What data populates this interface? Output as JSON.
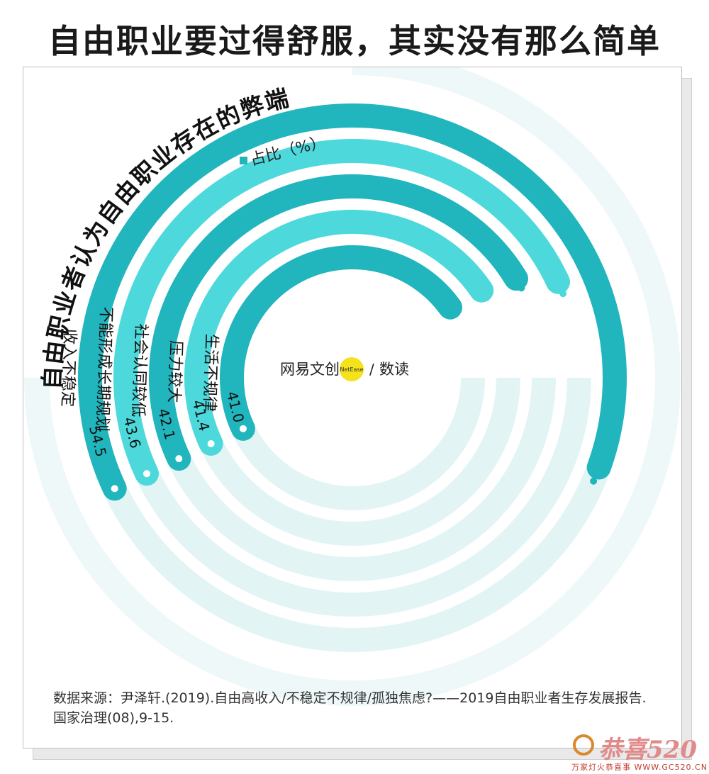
{
  "title": "自由职业要过得舒服，其实没有那么简单",
  "chart_data": {
    "type": "radial-bar",
    "title": "自由职业者认为自由职业存在的弊端",
    "legend": "占比（%）",
    "unit": "%",
    "categories": [
      "收入不稳定",
      "不能形成长期规划",
      "社会认同较低",
      "压力较大",
      "生活不规律"
    ],
    "values": [
      54.5,
      43.6,
      42.1,
      41.4,
      41.0
    ],
    "value_labels": [
      "54.5",
      "43.6",
      "42.1",
      "41.4",
      "41.0"
    ],
    "colors": [
      "#21b5bd",
      "#4dd9db",
      "#21b5bd",
      "#4dd9db",
      "#21b5bd"
    ],
    "track_color": "#e3f4f5"
  },
  "brand": {
    "name": "网易文创",
    "badge": "NetEase",
    "slash": "/",
    "product": "数读",
    "badge_color": "#f4e21a"
  },
  "source": "数据来源：尹泽轩.(2019).自由高收入/不稳定不规律/孤独焦虑?——2019自由职业者生存发展报告. 国家治理(08),9-15.",
  "watermark": {
    "text": "恭喜520",
    "sub": "万家灯火恭喜事 WWW.GC520.CN"
  }
}
